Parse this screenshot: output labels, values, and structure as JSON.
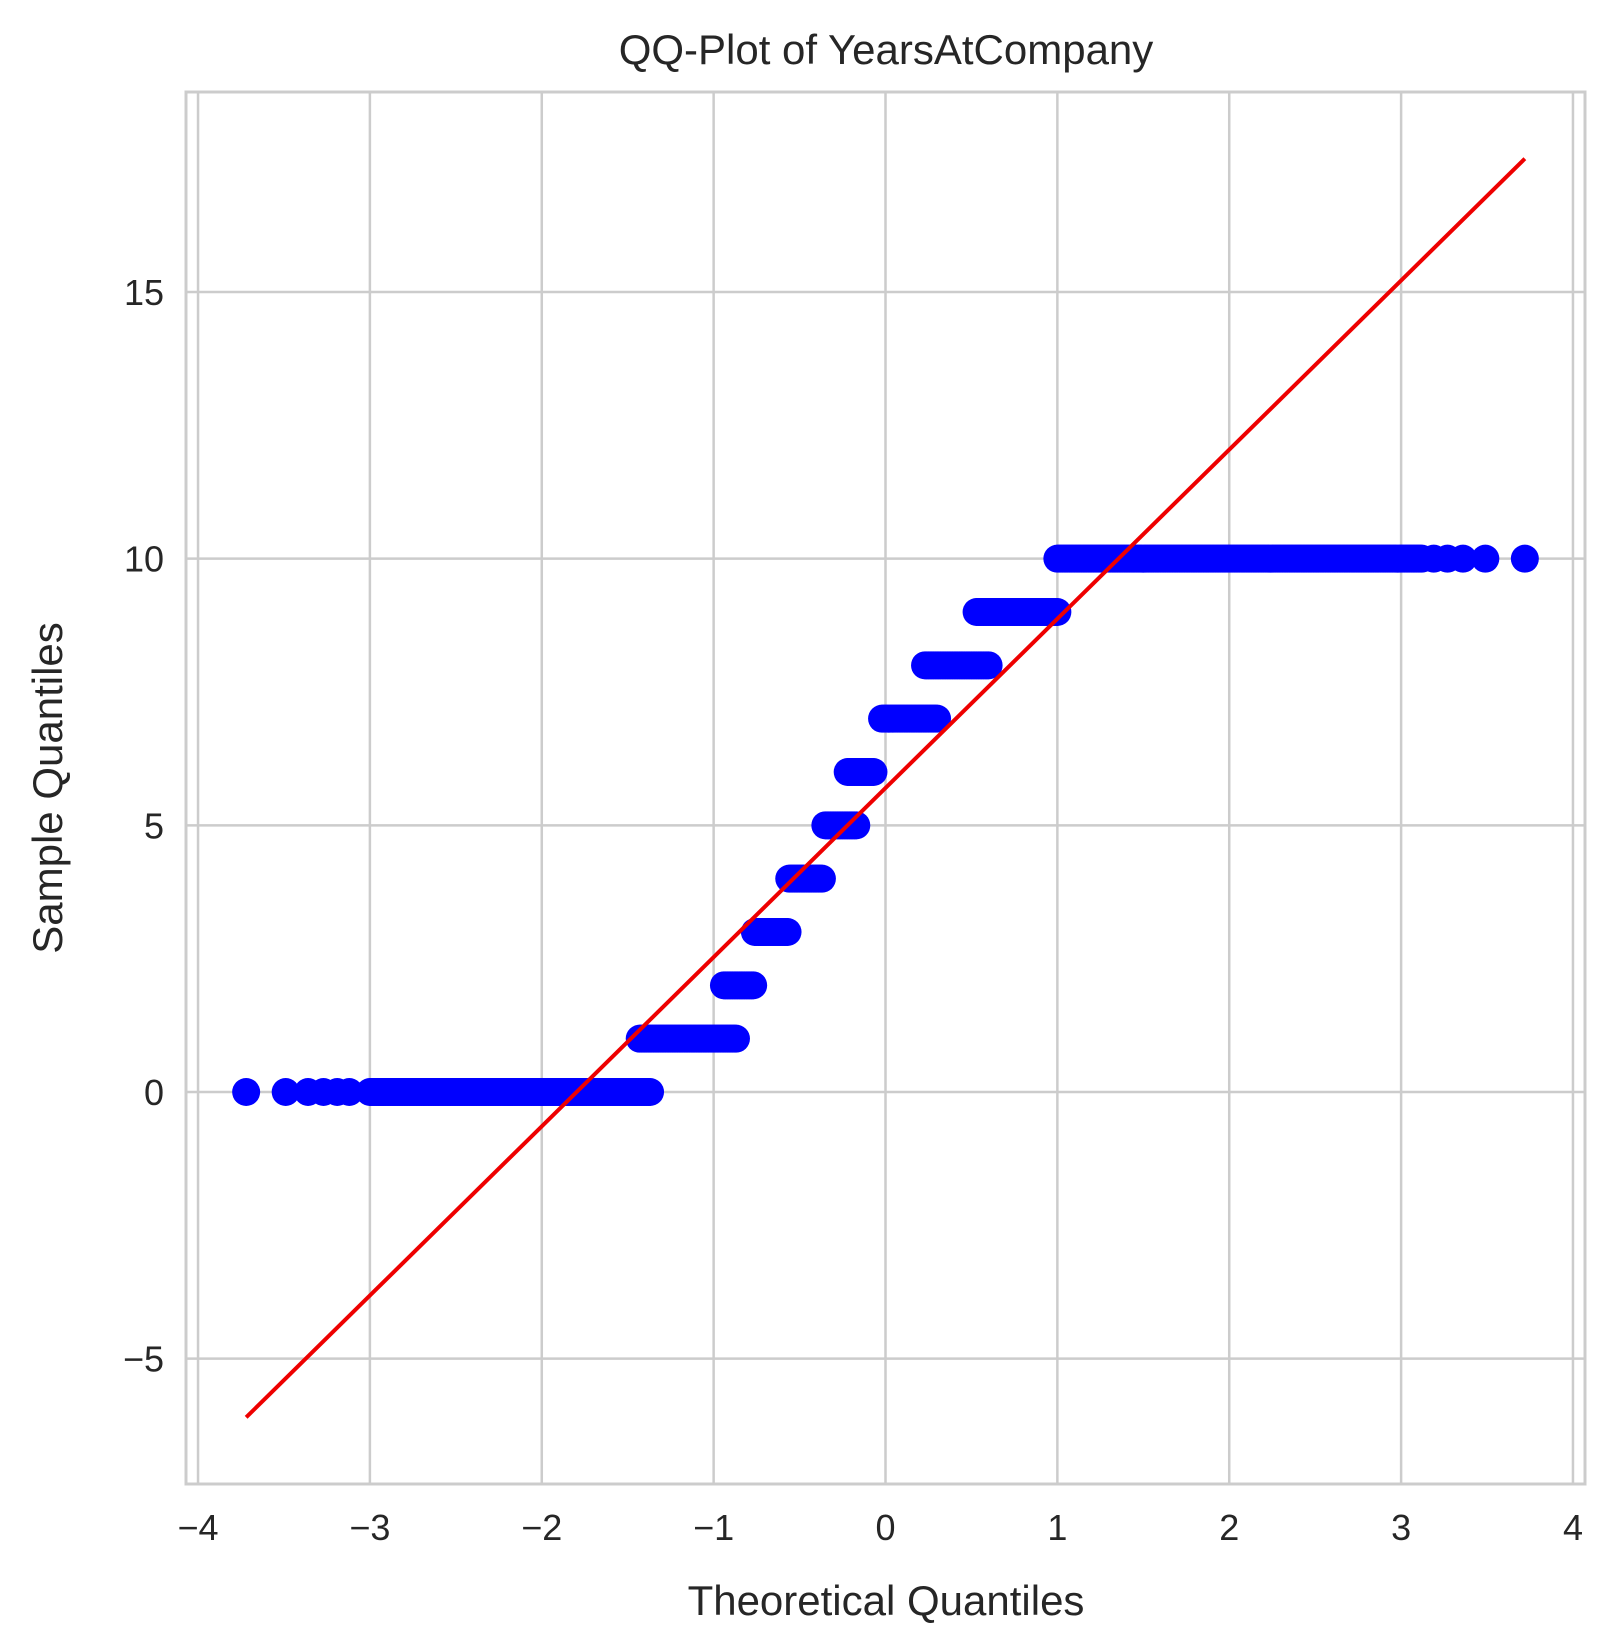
{
  "chart_data": {
    "type": "scatter",
    "title": "QQ-Plot of YearsAtCompany",
    "xlabel": "Theoretical Quantiles",
    "ylabel": "Sample Quantiles",
    "xlim": [
      -4.07,
      4.07
    ],
    "ylim": [
      -7.35,
      18.75
    ],
    "xticks": [
      -4,
      -3,
      -2,
      -1,
      0,
      1,
      2,
      3,
      4
    ],
    "yticks": [
      -5,
      0,
      5,
      10,
      15
    ],
    "xtick_labels": [
      "−4",
      "−3",
      "−2",
      "−1",
      "0",
      "1",
      "2",
      "3",
      "4"
    ],
    "ytick_labels": [
      "−5",
      "0",
      "5",
      "10",
      "15"
    ],
    "grid": true,
    "colors": {
      "points": "#0000ff",
      "line": "#ee0000",
      "grid": "#cccccc",
      "frame": "#cccccc"
    },
    "series": [
      {
        "type": "points",
        "segments": [
          {
            "y": 0,
            "x": [
              -1.37,
              -3.0
            ]
          },
          {
            "y": 1,
            "x": [
              -0.87,
              -1.43
            ]
          },
          {
            "y": 2,
            "x": [
              -0.77,
              -0.94
            ]
          },
          {
            "y": 3,
            "x": [
              -0.57,
              -0.76
            ]
          },
          {
            "y": 4,
            "x": [
              -0.37,
              -0.56
            ]
          },
          {
            "y": 5,
            "x": [
              -0.17,
              -0.35
            ]
          },
          {
            "y": 6,
            "x": [
              -0.07,
              -0.22
            ]
          },
          {
            "y": 7,
            "x": [
              0.3,
              -0.02
            ]
          },
          {
            "y": 8,
            "x": [
              0.6,
              0.23
            ]
          },
          {
            "y": 9,
            "x": [
              1.0,
              0.53
            ]
          },
          {
            "y": 10,
            "x": [
              1.0,
              3.12
            ]
          }
        ],
        "outliers": [
          {
            "x": -3.72,
            "y": 0
          },
          {
            "x": -3.49,
            "y": 0
          },
          {
            "x": -3.36,
            "y": 0
          },
          {
            "x": -3.27,
            "y": 0
          },
          {
            "x": -3.19,
            "y": 0
          },
          {
            "x": -3.12,
            "y": 0
          },
          {
            "x": 3.19,
            "y": 10
          },
          {
            "x": 3.27,
            "y": 10
          },
          {
            "x": 3.36,
            "y": 10
          },
          {
            "x": 3.49,
            "y": 10
          },
          {
            "x": 3.72,
            "y": 10
          }
        ]
      },
      {
        "type": "line",
        "x": [
          -3.72,
          3.72
        ],
        "y": [
          -6.1,
          17.5
        ]
      }
    ]
  }
}
